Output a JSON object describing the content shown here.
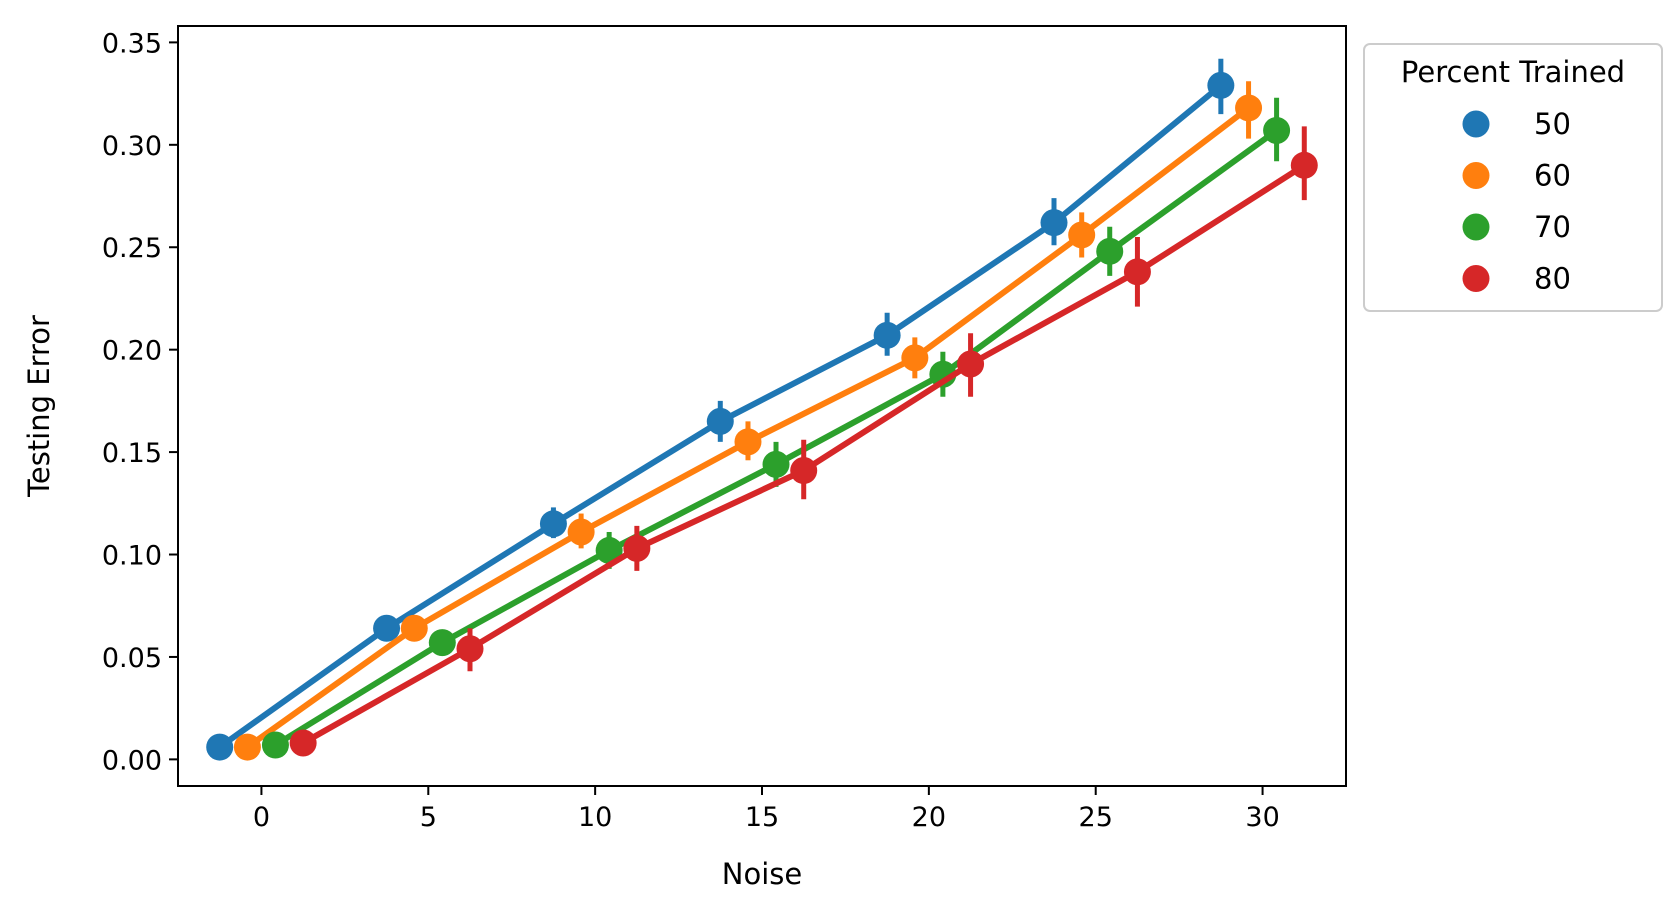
{
  "chart_data": {
    "type": "line",
    "xlabel": "Noise",
    "ylabel": "Testing Error",
    "x_ticks": [
      "0",
      "5",
      "10",
      "15",
      "20",
      "25",
      "30"
    ],
    "y_ticks": [
      "0.00",
      "0.05",
      "0.10",
      "0.15",
      "0.20",
      "0.25",
      "0.30",
      "0.35"
    ],
    "xlim": [
      -2.5,
      32.5
    ],
    "ylim": [
      -0.013,
      0.358
    ],
    "grid": false,
    "legend": {
      "title": "Percent Trained",
      "placement": "outside-upper-right"
    },
    "x": [
      0,
      5,
      10,
      15,
      20,
      25,
      30
    ],
    "series": [
      {
        "name": "50",
        "color": "#1f77b4",
        "x": [
          -1.25,
          3.75,
          8.75,
          13.75,
          18.75,
          23.75,
          28.75
        ],
        "values": [
          0.006,
          0.064,
          0.115,
          0.165,
          0.207,
          0.262,
          0.329
        ],
        "err_low": [
          0.004,
          0.061,
          0.108,
          0.155,
          0.197,
          0.251,
          0.315
        ],
        "err_high": [
          0.008,
          0.068,
          0.123,
          0.175,
          0.218,
          0.274,
          0.342
        ]
      },
      {
        "name": "60",
        "color": "#ff7f0e",
        "x": [
          -0.42,
          4.58,
          9.58,
          14.58,
          19.58,
          24.58,
          29.58
        ],
        "values": [
          0.006,
          0.064,
          0.111,
          0.155,
          0.196,
          0.256,
          0.318
        ],
        "err_low": [
          0.004,
          0.06,
          0.103,
          0.146,
          0.186,
          0.245,
          0.303
        ],
        "err_high": [
          0.008,
          0.068,
          0.12,
          0.165,
          0.206,
          0.267,
          0.331
        ]
      },
      {
        "name": "70",
        "color": "#2ca02c",
        "x": [
          0.42,
          5.42,
          10.42,
          15.42,
          20.42,
          25.42,
          30.42
        ],
        "values": [
          0.007,
          0.057,
          0.102,
          0.144,
          0.188,
          0.248,
          0.307
        ],
        "err_low": [
          0.005,
          0.052,
          0.093,
          0.133,
          0.177,
          0.236,
          0.292
        ],
        "err_high": [
          0.009,
          0.062,
          0.111,
          0.155,
          0.199,
          0.26,
          0.323
        ]
      },
      {
        "name": "80",
        "color": "#d62728",
        "x": [
          1.25,
          6.25,
          11.25,
          16.25,
          21.25,
          26.25,
          31.25
        ],
        "values": [
          0.008,
          0.054,
          0.103,
          0.141,
          0.193,
          0.238,
          0.29
        ],
        "err_low": [
          0.006,
          0.043,
          0.092,
          0.127,
          0.177,
          0.221,
          0.273
        ],
        "err_high": [
          0.011,
          0.064,
          0.114,
          0.156,
          0.208,
          0.255,
          0.309
        ]
      }
    ]
  }
}
